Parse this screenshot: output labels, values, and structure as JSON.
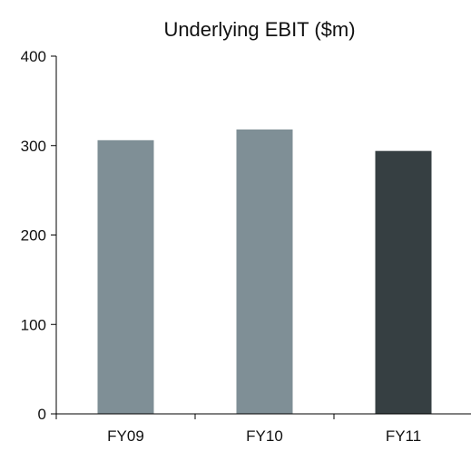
{
  "chart_data": {
    "type": "bar",
    "title": "Underlying EBIT ($m)",
    "xlabel": "",
    "ylabel": "",
    "categories": [
      "FY09",
      "FY10",
      "FY11"
    ],
    "values": [
      306,
      318,
      294
    ],
    "bar_colors": [
      "#7f8f96",
      "#7f8f96",
      "#363f42"
    ],
    "ylim": [
      0,
      400
    ],
    "yticks": [
      0,
      100,
      200,
      300,
      400
    ],
    "grid": false,
    "legend": "none"
  }
}
